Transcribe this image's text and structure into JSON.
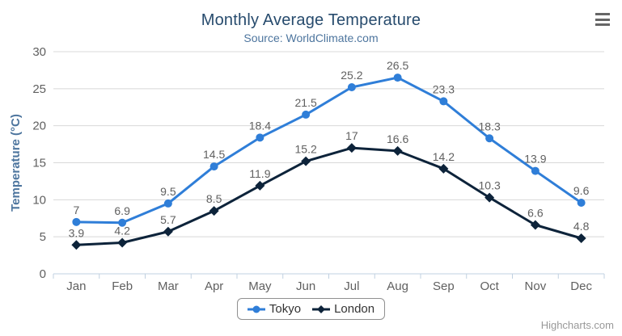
{
  "header": {
    "title": "Monthly Average Temperature",
    "subtitle": "Source: WorldClimate.com"
  },
  "context_menu": {
    "icon": "hamburger-menu-icon"
  },
  "credits": {
    "label": "Highcharts.com"
  },
  "colors": {
    "title": "#274b6d",
    "subtitle": "#4d759e",
    "axis_title": "#4d759e",
    "axis_labels": "#606060",
    "data_labels": "#606060",
    "grid_line": "#d8d8d8",
    "axis_line": "#c0d0e0",
    "legend_text": "#333333",
    "legend_border": "#909090",
    "menu_icon": "#666666",
    "credits_text": "#999999"
  },
  "chart_data": {
    "type": "line",
    "title": "Monthly Average Temperature",
    "subtitle": "Source: WorldClimate.com",
    "categories": [
      "Jan",
      "Feb",
      "Mar",
      "Apr",
      "May",
      "Jun",
      "Jul",
      "Aug",
      "Sep",
      "Oct",
      "Nov",
      "Dec"
    ],
    "series": [
      {
        "name": "Tokyo",
        "color": "#2f7ed8",
        "marker": "circle",
        "values": [
          7,
          6.9,
          9.5,
          14.5,
          18.4,
          21.5,
          25.2,
          26.5,
          23.3,
          18.3,
          13.9,
          9.6
        ]
      },
      {
        "name": "London",
        "color": "#0d233a",
        "marker": "diamond",
        "values": [
          3.9,
          4.2,
          5.7,
          8.5,
          11.9,
          15.2,
          17,
          16.6,
          14.2,
          10.3,
          6.6,
          4.8
        ]
      }
    ],
    "xlabel": "",
    "ylabel": "Temperature (°C)",
    "ylim": [
      0,
      30
    ],
    "ytick_step": 5,
    "grid": true,
    "data_labels": true,
    "legend_position": "bottom"
  }
}
